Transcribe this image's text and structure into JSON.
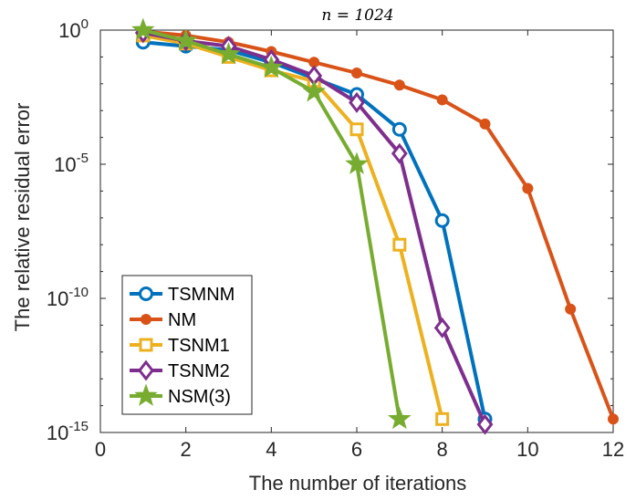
{
  "chart_data": {
    "type": "line",
    "title": "n = 1024",
    "xlabel": "The number of iterations",
    "ylabel": "The relative residual error",
    "xlim": [
      0,
      12
    ],
    "ylim_log10": [
      -15,
      0
    ],
    "yscale": "log",
    "x_ticks": [
      0,
      2,
      4,
      6,
      8,
      10,
      12
    ],
    "x_tick_labels": [
      "0",
      "2",
      "4",
      "6",
      "8",
      "10",
      "12"
    ],
    "y_ticks_log10": [
      0,
      -5,
      -10,
      -15
    ],
    "y_tick_labels": [
      {
        "base": "10",
        "exp": "0"
      },
      {
        "base": "10",
        "exp": "-5"
      },
      {
        "base": "10",
        "exp": "-10"
      },
      {
        "base": "10",
        "exp": "-15"
      }
    ],
    "legend_position": "bottom-left",
    "series": [
      {
        "name": "TSMNM",
        "color": "#0072BD",
        "marker": "circle",
        "x": [
          1,
          2,
          3,
          4,
          5,
          6,
          7,
          8,
          9
        ],
        "log10_y": [
          -0.45,
          -0.6,
          -0.75,
          -1.2,
          -1.8,
          -2.4,
          -3.7,
          -7.1,
          -14.5
        ]
      },
      {
        "name": "NM",
        "color": "#D95319",
        "marker": "filled-circle",
        "x": [
          1,
          2,
          3,
          4,
          5,
          6,
          7,
          8,
          9,
          10,
          11,
          12
        ],
        "log10_y": [
          -0.05,
          -0.2,
          -0.45,
          -0.8,
          -1.2,
          -1.6,
          -2.05,
          -2.6,
          -3.5,
          -5.9,
          -10.4,
          -14.5
        ]
      },
      {
        "name": "TSNM1",
        "color": "#EDB120",
        "marker": "square",
        "x": [
          1,
          2,
          3,
          4,
          5,
          6,
          7,
          8
        ],
        "log10_y": [
          -0.2,
          -0.5,
          -1.0,
          -1.5,
          -1.9,
          -3.7,
          -8.0,
          -14.5
        ]
      },
      {
        "name": "TSNM2",
        "color": "#7E2F8E",
        "marker": "diamond",
        "x": [
          1,
          2,
          3,
          4,
          5,
          6,
          7,
          8,
          9
        ],
        "log10_y": [
          -0.1,
          -0.4,
          -0.6,
          -1.1,
          -1.7,
          -2.7,
          -4.6,
          -11.1,
          -14.7
        ]
      },
      {
        "name": "NSM(3)",
        "color": "#77AC30",
        "marker": "star",
        "x": [
          1,
          2,
          3,
          4,
          5,
          6,
          7
        ],
        "log10_y": [
          0.0,
          -0.4,
          -0.9,
          -1.4,
          -2.3,
          -5.0,
          -14.5
        ]
      }
    ]
  }
}
